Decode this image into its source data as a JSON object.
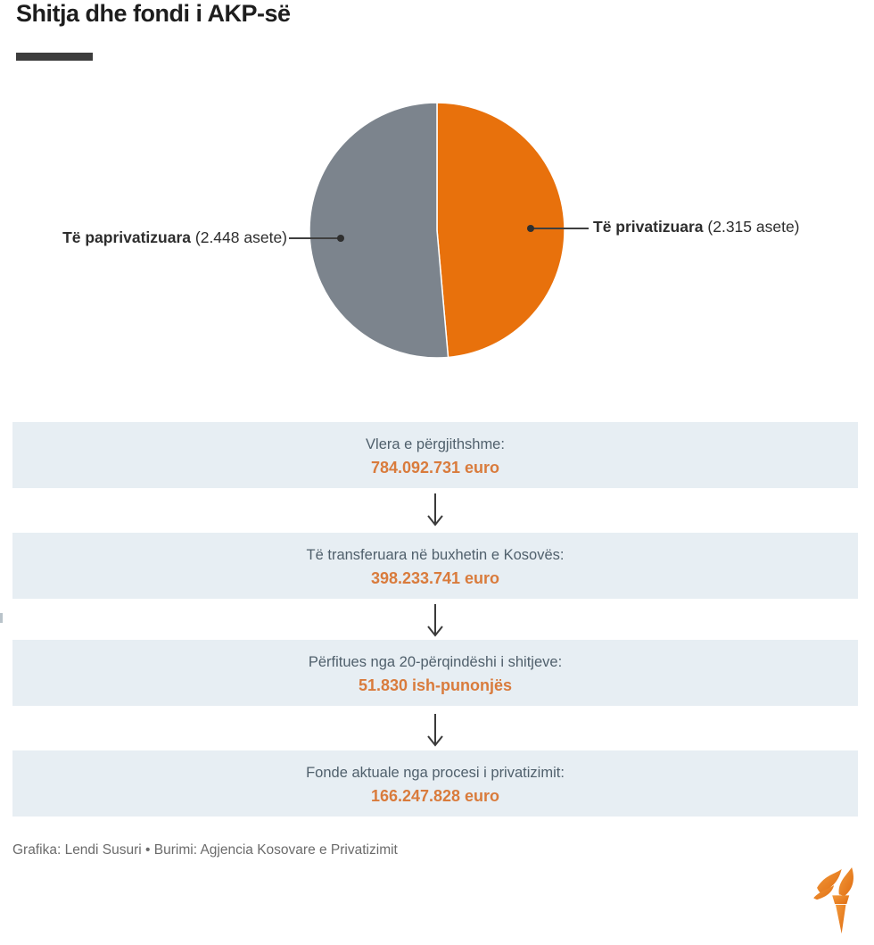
{
  "title": "Shitja dhe fondi i AKP-së",
  "chart_data": {
    "type": "pie",
    "title": "Shitja dhe fondi i AKP-së",
    "start_angle_deg": -90,
    "direction": "clockwise",
    "legend_position": "callouts-left-right",
    "slices": [
      {
        "label": "Të privatizuara",
        "sublabel": "(2.315 asete)",
        "value": 2315,
        "color": "#e8710c"
      },
      {
        "label": "Të paprivatizuara",
        "sublabel": "(2.448 asete)",
        "value": 2448,
        "color": "#7c848d"
      }
    ]
  },
  "callouts": {
    "left": {
      "bold": "Të paprivatizuara",
      "rest": " (2.448 asete)"
    },
    "right": {
      "bold": "Të privatizuara",
      "rest": " (2.315 asete)"
    }
  },
  "flow_boxes": [
    {
      "label": "Vlera e përgjithshme:",
      "value": "784.092.731 euro"
    },
    {
      "label": "Të transferuara në buxhetin e Kosovës:",
      "value": "398.233.741 euro"
    },
    {
      "label": "Përfitues nga 20-përqindëshi i shitjeve:",
      "value": "51.830 ish-punonjës"
    },
    {
      "label": "Fonde aktuale nga procesi i privatizimit:",
      "value": "166.247.828 euro"
    }
  ],
  "footer": {
    "credit": "Grafika: Lendi Susuri • Burimi: Agjencia Kosovare e Privatizimit"
  },
  "logo": {
    "name": "rferl-torch"
  },
  "colors": {
    "slice_orange": "#e8710c",
    "slice_gray": "#7c848d",
    "value_orange": "#d97b3c",
    "box_background": "#e7eef3",
    "box_label_text": "#50606c",
    "title_text": "#1e1e1e",
    "footer_text": "#6b6b6b"
  }
}
